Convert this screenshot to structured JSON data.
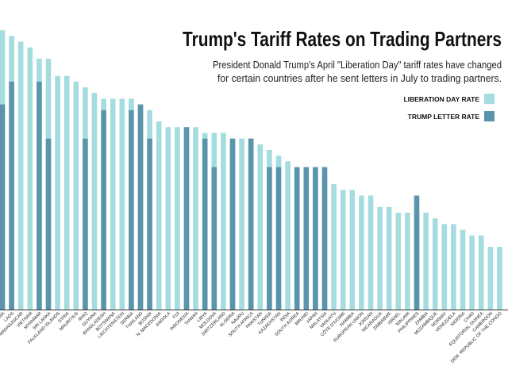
{
  "chart_data": {
    "type": "bar",
    "title": "Trump's Tariff Rates on Trading Partners",
    "subtitle": [
      "President Donald Trump's April \"Liberation Day\" tariff rates have changed",
      "for certain countries after he sent letters in July to trading partners."
    ],
    "categories": [
      "CAMBODIA",
      "LAOS",
      "MADAGASCAR",
      "VIETNAM",
      "MYANMAR",
      "SRI LANKA",
      "FALKLAND ISLANDS",
      "SYRIA",
      "MAURITIUS",
      "IRAQ",
      "GUYANA",
      "BANGLADESH",
      "BOTSWANA",
      "LIECHTENSTEIN",
      "SERBIA",
      "THAILAND",
      "BOSNIA",
      "N. MACEDONIA",
      "ANGOLA",
      "FIJI",
      "INDONESIA",
      "TAIWAN",
      "LIBYA",
      "MOLDOVA",
      "SWITZERLAND",
      "ALGERIA",
      "NAURU",
      "SOUTH AFRICA",
      "PAKISTAN",
      "TUNISIA",
      "KAZAKHSTAN",
      "INDIA",
      "SOUTH KOREA",
      "BRUNEI",
      "JAPAN",
      "MALAYSIA",
      "VANUATU",
      "CÔTE D'IVOIRE",
      "NAMIBIA",
      "EUROPEAN UNION",
      "JORDAN",
      "NICARAGUA",
      "ZIMBABWE",
      "ISRAEL",
      "MALAWI",
      "PHILIPPINES",
      "ZAMBIA",
      "MOZAMBIQUE",
      "NORWAY",
      "VENEZUELA",
      "NIGERIA",
      "CHAD",
      "EQUATORIAL GUINEA",
      "CAMEROON",
      "DEM. REPUBLIC OF THE CONGO"
    ],
    "series": [
      {
        "name": "LIBERATION DAY RATE",
        "color": "#a5dcdf",
        "values": [
          49,
          48,
          47,
          46,
          44,
          44,
          41,
          41,
          40,
          39,
          38,
          37,
          37,
          37,
          37,
          36,
          35,
          33,
          32,
          32,
          32,
          32,
          31,
          31,
          31,
          30,
          30,
          30,
          29,
          28,
          27,
          26,
          25,
          24,
          24,
          24,
          22,
          21,
          21,
          20,
          20,
          18,
          18,
          17,
          17,
          17,
          17,
          16,
          15,
          15,
          14,
          13,
          13,
          11,
          11
        ]
      },
      {
        "name": "TRUMP LETTER RATE",
        "color": "#5b95ab",
        "values": [
          36,
          40,
          null,
          null,
          40,
          30,
          null,
          null,
          null,
          30,
          null,
          35,
          null,
          null,
          35,
          36,
          30,
          null,
          null,
          null,
          32,
          null,
          30,
          25,
          null,
          30,
          null,
          30,
          null,
          25,
          25,
          null,
          25,
          25,
          25,
          25,
          null,
          null,
          null,
          null,
          null,
          null,
          null,
          null,
          null,
          20,
          null,
          null,
          null,
          null,
          null,
          null,
          null,
          null,
          null
        ]
      }
    ],
    "ylim": [
      0,
      50
    ]
  }
}
